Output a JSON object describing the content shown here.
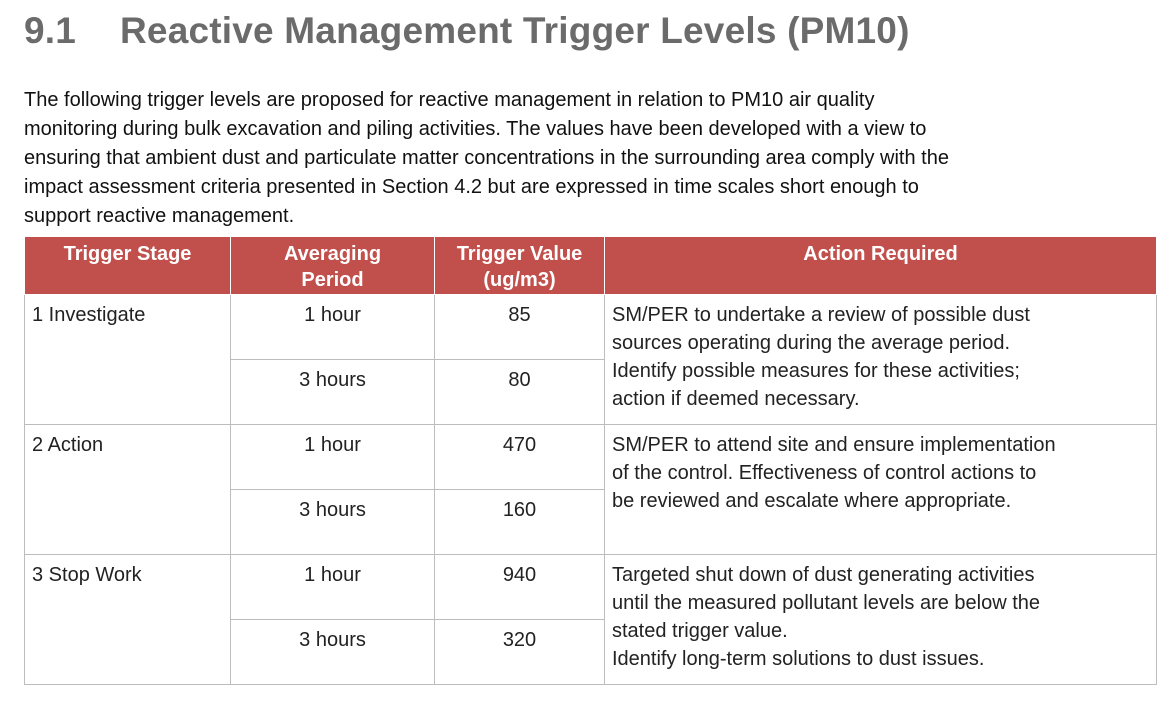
{
  "section": {
    "number": "9.1",
    "title": "Reactive Management Trigger Levels (PM10)"
  },
  "intro_lines": [
    "The following trigger levels are proposed for reactive management in relation to PM10 air quality",
    "monitoring during bulk excavation and piling activities. The values have been developed with a view to",
    "ensuring that ambient dust and particulate matter concentrations in the surrounding area comply with the",
    "impact assessment criteria presented in Section 4.2 but are expressed in time scales short enough to",
    "support reactive management."
  ],
  "table": {
    "headers": {
      "stage": "Trigger Stage",
      "period_line1": "Averaging",
      "period_line2": "Period",
      "value_line1": "Trigger Value",
      "value_line2": "(ug/m3)",
      "action": "Action Required"
    },
    "rows": [
      {
        "stage": "1 Investigate",
        "p1": "1 hour",
        "v1": "85",
        "p2": "3 hours",
        "v2": "80",
        "action_lines": [
          "SM/PER to undertake a review of possible dust",
          "sources operating during the average period.",
          "Identify possible measures for these activities;",
          "action if deemed necessary."
        ]
      },
      {
        "stage": "2 Action",
        "p1": "1 hour",
        "v1": "470",
        "p2": "3 hours",
        "v2": "160",
        "action_lines": [
          "SM/PER to attend site and ensure implementation",
          "of the control. Effectiveness of control actions to",
          "be reviewed and escalate where appropriate."
        ]
      },
      {
        "stage": "3 Stop Work",
        "p1": "1 hour",
        "v1": "940",
        "p2": "3 hours",
        "v2": "320",
        "action_lines": [
          "Targeted shut down of dust generating activities",
          "until the measured pollutant levels are below the",
          "stated trigger value.",
          "Identify long-term solutions to dust issues."
        ]
      }
    ]
  }
}
